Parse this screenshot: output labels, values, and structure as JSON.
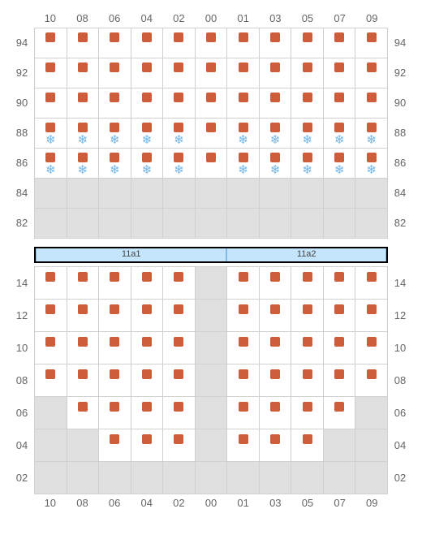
{
  "colors": {
    "marker": "#ce5d3b",
    "snow": "#6fb5e8",
    "disabled_bg": "#e0e0e0",
    "grid_border": "#d0d0d0",
    "group_bg": "#c5e5fc",
    "group_border": "#0a5599",
    "label_color": "#666666"
  },
  "columns": [
    "10",
    "08",
    "06",
    "04",
    "02",
    "00",
    "01",
    "03",
    "05",
    "07",
    "09"
  ],
  "top": {
    "row_labels": [
      "94",
      "92",
      "90",
      "88",
      "86",
      "84",
      "82"
    ],
    "cells": {
      "94": {
        "marker": [
          1,
          1,
          1,
          1,
          1,
          1,
          1,
          1,
          1,
          1,
          1
        ],
        "snow": [
          0,
          0,
          0,
          0,
          0,
          0,
          0,
          0,
          0,
          0,
          0
        ],
        "disabled": [
          0,
          0,
          0,
          0,
          0,
          0,
          0,
          0,
          0,
          0,
          0
        ]
      },
      "92": {
        "marker": [
          1,
          1,
          1,
          1,
          1,
          1,
          1,
          1,
          1,
          1,
          1
        ],
        "snow": [
          0,
          0,
          0,
          0,
          0,
          0,
          0,
          0,
          0,
          0,
          0
        ],
        "disabled": [
          0,
          0,
          0,
          0,
          0,
          0,
          0,
          0,
          0,
          0,
          0
        ]
      },
      "90": {
        "marker": [
          1,
          1,
          1,
          1,
          1,
          1,
          1,
          1,
          1,
          1,
          1
        ],
        "snow": [
          0,
          0,
          0,
          0,
          0,
          0,
          0,
          0,
          0,
          0,
          0
        ],
        "disabled": [
          0,
          0,
          0,
          0,
          0,
          0,
          0,
          0,
          0,
          0,
          0
        ]
      },
      "88": {
        "marker": [
          1,
          1,
          1,
          1,
          1,
          1,
          1,
          1,
          1,
          1,
          1
        ],
        "snow": [
          1,
          1,
          1,
          1,
          1,
          0,
          1,
          1,
          1,
          1,
          1
        ],
        "disabled": [
          0,
          0,
          0,
          0,
          0,
          0,
          0,
          0,
          0,
          0,
          0
        ]
      },
      "86": {
        "marker": [
          1,
          1,
          1,
          1,
          1,
          1,
          1,
          1,
          1,
          1,
          1
        ],
        "snow": [
          1,
          1,
          1,
          1,
          1,
          0,
          1,
          1,
          1,
          1,
          1
        ],
        "disabled": [
          0,
          0,
          0,
          0,
          0,
          0,
          0,
          0,
          0,
          0,
          0
        ]
      },
      "84": {
        "marker": [
          0,
          0,
          0,
          0,
          0,
          0,
          0,
          0,
          0,
          0,
          0
        ],
        "snow": [
          0,
          0,
          0,
          0,
          0,
          0,
          0,
          0,
          0,
          0,
          0
        ],
        "disabled": [
          1,
          1,
          1,
          1,
          1,
          1,
          1,
          1,
          1,
          1,
          1
        ]
      },
      "82": {
        "marker": [
          0,
          0,
          0,
          0,
          0,
          0,
          0,
          0,
          0,
          0,
          0
        ],
        "snow": [
          0,
          0,
          0,
          0,
          0,
          0,
          0,
          0,
          0,
          0,
          0
        ],
        "disabled": [
          1,
          1,
          1,
          1,
          1,
          1,
          1,
          1,
          1,
          1,
          1
        ]
      }
    }
  },
  "groups": {
    "segments": [
      {
        "label": "11a1",
        "span": 6
      },
      {
        "label": "11a2",
        "span": 5
      }
    ]
  },
  "bottom": {
    "row_labels": [
      "14",
      "12",
      "10",
      "08",
      "06",
      "04",
      "02"
    ],
    "cells": {
      "14": {
        "marker": [
          1,
          1,
          1,
          1,
          1,
          0,
          1,
          1,
          1,
          1,
          1
        ],
        "disabled": [
          0,
          0,
          0,
          0,
          0,
          1,
          0,
          0,
          0,
          0,
          0
        ]
      },
      "12": {
        "marker": [
          1,
          1,
          1,
          1,
          1,
          0,
          1,
          1,
          1,
          1,
          1
        ],
        "disabled": [
          0,
          0,
          0,
          0,
          0,
          1,
          0,
          0,
          0,
          0,
          0
        ]
      },
      "10": {
        "marker": [
          1,
          1,
          1,
          1,
          1,
          0,
          1,
          1,
          1,
          1,
          1
        ],
        "disabled": [
          0,
          0,
          0,
          0,
          0,
          1,
          0,
          0,
          0,
          0,
          0
        ]
      },
      "08": {
        "marker": [
          1,
          1,
          1,
          1,
          1,
          0,
          1,
          1,
          1,
          1,
          1
        ],
        "disabled": [
          0,
          0,
          0,
          0,
          0,
          1,
          0,
          0,
          0,
          0,
          0
        ]
      },
      "06": {
        "marker": [
          0,
          1,
          1,
          1,
          1,
          0,
          1,
          1,
          1,
          1,
          0
        ],
        "disabled": [
          1,
          0,
          0,
          0,
          0,
          1,
          0,
          0,
          0,
          0,
          1
        ]
      },
      "04": {
        "marker": [
          0,
          0,
          1,
          1,
          1,
          0,
          1,
          1,
          1,
          0,
          0
        ],
        "disabled": [
          1,
          1,
          0,
          0,
          0,
          1,
          0,
          0,
          0,
          1,
          1
        ]
      },
      "02": {
        "marker": [
          0,
          0,
          0,
          0,
          0,
          0,
          0,
          0,
          0,
          0,
          0
        ],
        "disabled": [
          1,
          1,
          1,
          1,
          1,
          1,
          1,
          1,
          1,
          1,
          1
        ]
      }
    }
  }
}
